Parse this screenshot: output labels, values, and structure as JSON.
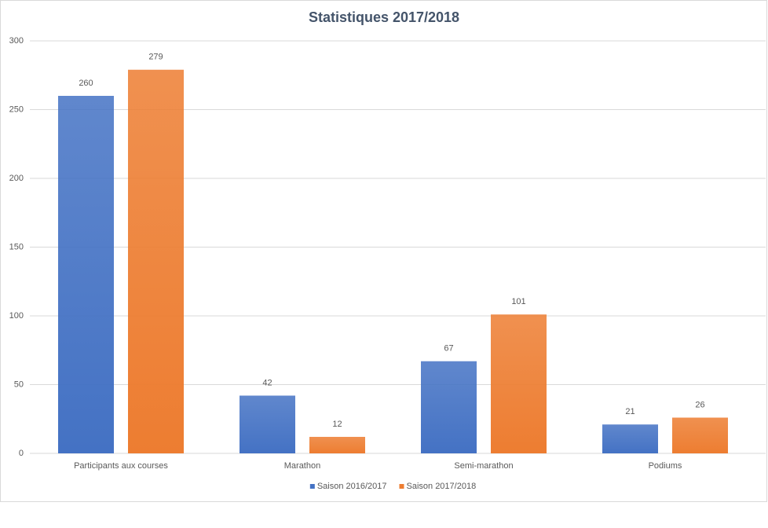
{
  "chart_data": {
    "type": "bar",
    "title": "Statistiques  2017/2018",
    "categories": [
      "Participants aux courses",
      "Marathon",
      "Semi-marathon",
      "Podiums"
    ],
    "series": [
      {
        "name": "Saison 2016/2017",
        "color": "#4472c4",
        "values": [
          260,
          42,
          67,
          21
        ]
      },
      {
        "name": "Saison 2017/2018",
        "color": "#ed7d31",
        "values": [
          279,
          12,
          101,
          26
        ]
      }
    ],
    "ylim": [
      0,
      300
    ],
    "yticks": [
      0,
      50,
      100,
      150,
      200,
      250,
      300
    ],
    "grid": true,
    "legend": "bottom"
  }
}
